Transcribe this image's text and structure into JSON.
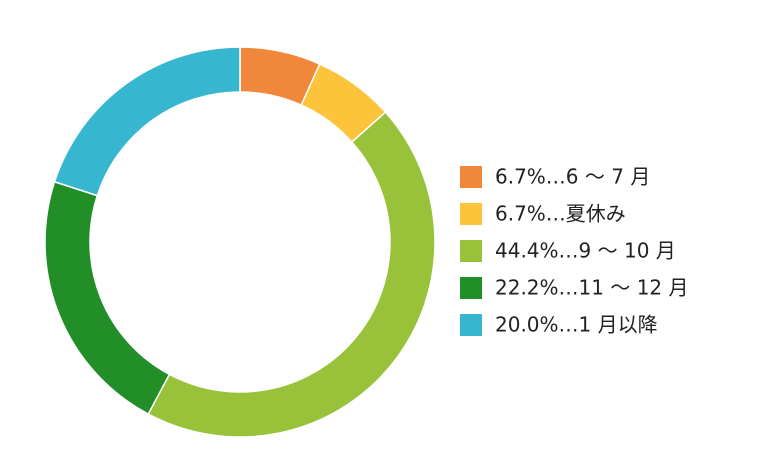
{
  "chart_data": {
    "type": "donut",
    "categories": [
      "6.7%…6 ～ 7 月",
      "6.7%…夏休み",
      "44.4%…9 ～ 10 月",
      "22.2%…11 ～ 12 月",
      "20.0%…1 月以降"
    ],
    "values": [
      6.7,
      6.7,
      44.4,
      22.2,
      20.0
    ],
    "colors": [
      "#f0873a",
      "#fdc43b",
      "#98c23a",
      "#228e28",
      "#36b7cf"
    ],
    "legend": "right"
  }
}
